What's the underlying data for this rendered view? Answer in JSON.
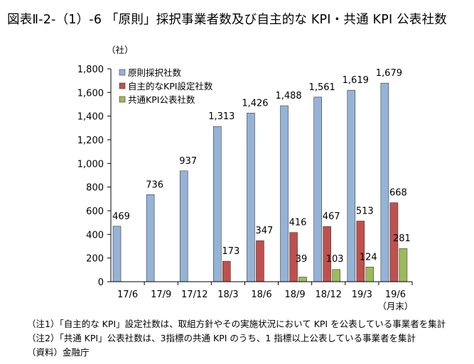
{
  "title": "図表Ⅱ-2-（1）-6 「原則」採択事業者数及び自主的な KPI・共通 KPI 公表社数",
  "chart_data": {
    "type": "bar",
    "unit_label": "（社）",
    "categories": [
      "17/6",
      "17/9",
      "17/12",
      "18/3",
      "18/6",
      "18/9",
      "18/12",
      "19/3",
      "19/6"
    ],
    "last_category_suffix": "（月末）",
    "ylim": [
      0,
      1800
    ],
    "yticks": [
      0,
      200,
      400,
      600,
      800,
      1000,
      1200,
      1400,
      1600,
      1800
    ],
    "ytick_labels": [
      "0",
      "200",
      "400",
      "600",
      "800",
      "1,000",
      "1,200",
      "1,400",
      "1,600",
      "1,800"
    ],
    "grid": false,
    "legend_position": "top-left",
    "series": [
      {
        "name": "原則採択社数",
        "color": "#95b3d7",
        "values": [
          469,
          736,
          937,
          1313,
          1426,
          1488,
          1561,
          1619,
          1679
        ],
        "labels": [
          "469",
          "736",
          "937",
          "1,313",
          "1,426",
          "1,488",
          "1,561",
          "1,619",
          "1,679"
        ]
      },
      {
        "name": "自主的なKPI設定社数",
        "color": "#c0504d",
        "values": [
          null,
          null,
          null,
          173,
          347,
          416,
          467,
          513,
          668
        ],
        "labels": [
          "",
          "",
          "",
          "173",
          "347",
          "416",
          "467",
          "513",
          "668"
        ]
      },
      {
        "name": "共通KPI公表社数",
        "color": "#9bbb59",
        "values": [
          null,
          null,
          null,
          null,
          null,
          39,
          103,
          124,
          281
        ],
        "labels": [
          "",
          "",
          "",
          "",
          "",
          "39",
          "103",
          "124",
          "281"
        ]
      }
    ]
  },
  "notes": [
    "（注1）「自主的な KPI」設定社数は、取組方針やその実施状況において KPI を公表している事業者を集計",
    "（注2）「共通 KPI」公表社数は、3指標の共通 KPI のうち、1 指標以上公表している事業者を集計"
  ],
  "source": "（資料）金融庁"
}
